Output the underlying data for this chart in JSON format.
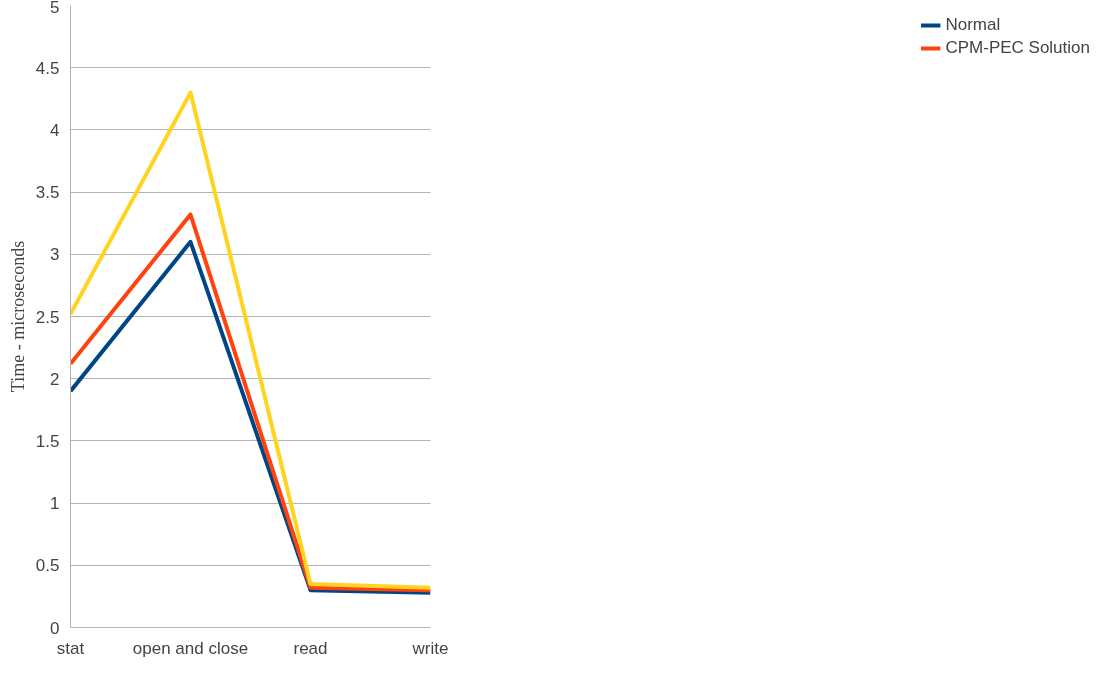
{
  "chart_data": {
    "type": "line",
    "ylabel": "Time - microseconds",
    "categories": [
      "stat",
      "open and close",
      "read",
      "write"
    ],
    "series": [
      {
        "name": "Normal",
        "color": "#004586",
        "values": [
          1.9,
          3.1,
          0.3,
          0.28
        ]
      },
      {
        "name": "CPM-PEC Solution",
        "color": "#ff420e",
        "values": [
          2.12,
          3.32,
          0.32,
          0.3
        ]
      },
      {
        "color": "#ffd320",
        "values": [
          2.52,
          4.3,
          0.35,
          0.32
        ]
      }
    ],
    "ylim": [
      0,
      5
    ],
    "yticks": [
      0,
      0.5,
      1,
      1.5,
      2,
      2.5,
      3,
      3.5,
      4,
      4.5,
      5
    ],
    "grid": "y",
    "legend": "right",
    "marker": "none",
    "line_style": "solid"
  }
}
